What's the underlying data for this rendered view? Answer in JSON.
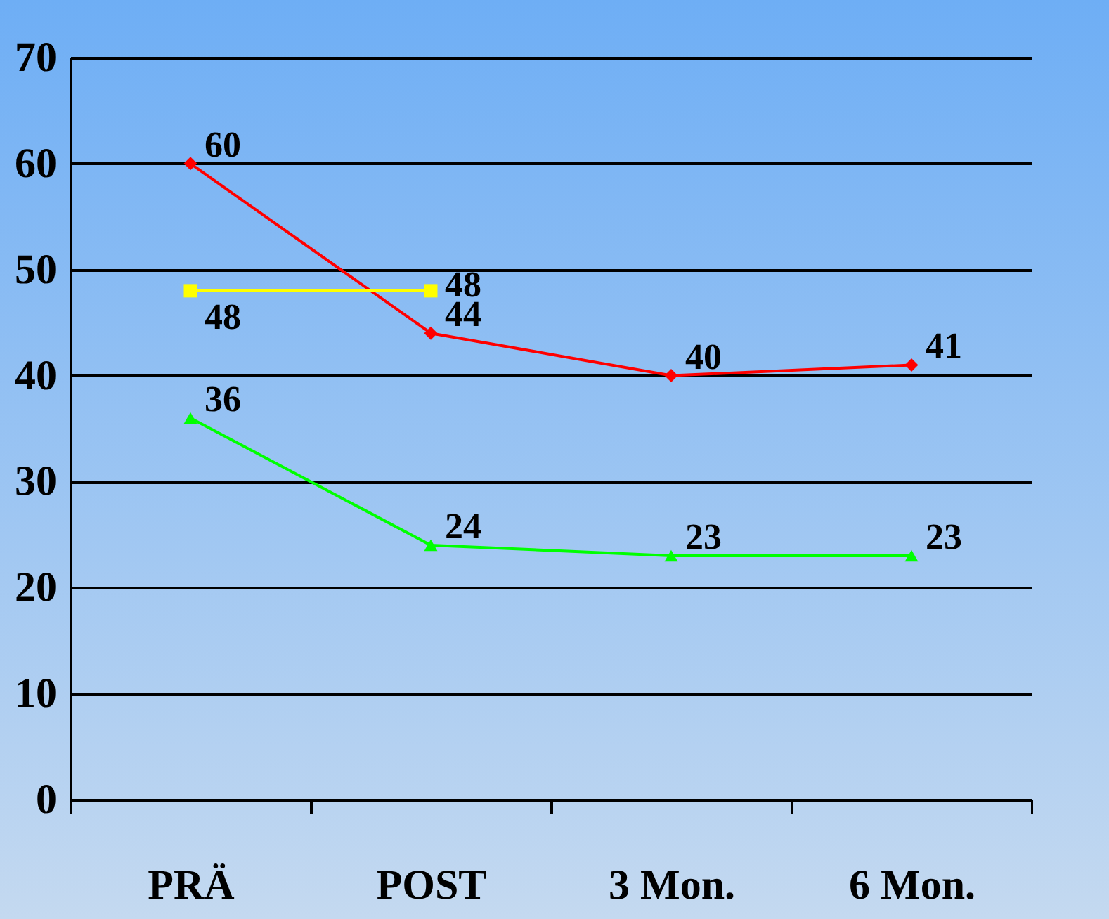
{
  "chart_data": {
    "type": "line",
    "categories": [
      "PRÄ",
      "POST",
      "3 Mon.",
      "6 Mon."
    ],
    "series": [
      {
        "color": "#ff0000",
        "marker": "diamond",
        "values": [
          60,
          44,
          40,
          41
        ]
      },
      {
        "color": "#ffff00",
        "marker": "square",
        "values": [
          48,
          48,
          null,
          null
        ]
      },
      {
        "color": "#00ff00",
        "marker": "triangle",
        "values": [
          36,
          24,
          23,
          23
        ]
      }
    ],
    "ylim": [
      0,
      70
    ],
    "yticks": [
      0,
      10,
      20,
      30,
      40,
      50,
      60,
      70
    ],
    "grid": "y",
    "data_labels": true
  }
}
